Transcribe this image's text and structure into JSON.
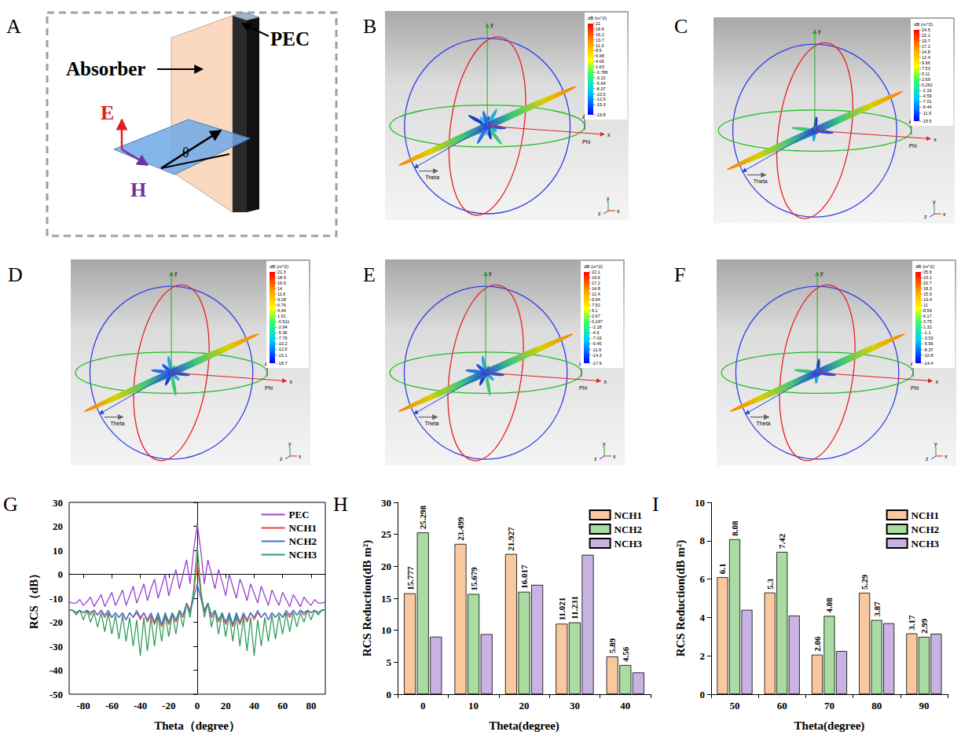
{
  "diagram": {
    "panel_label": "A",
    "absorber": "Absorber",
    "pec": "PEC",
    "e_field": "E",
    "h_field": "H",
    "angle": "θ"
  },
  "renders": [
    {
      "panel_label": "B",
      "colorbar": {
        "title": "dB (m^2)",
        "range": [
          -19.8,
          21
        ],
        "ticks": [
          21,
          18.6,
          16.2,
          13.7,
          11.3,
          8.9,
          6.48,
          4.06,
          1.63,
          -0.786,
          -3.22,
          -5.64,
          -8.07,
          -10.5,
          -12.9,
          -15.3,
          -19.8
        ]
      },
      "axis_labels": {
        "x": "x",
        "y": "y",
        "theta": "Theta",
        "phi": "Phi"
      },
      "triad": {
        "x": "x",
        "y": "y",
        "z": "z"
      }
    },
    {
      "panel_label": "C",
      "colorbar": {
        "title": "dB (m^2)",
        "range": [
          -15.5,
          24.5
        ],
        "ticks": [
          24.5,
          22.1,
          19.7,
          17.2,
          14.8,
          12.4,
          9.96,
          7.53,
          5.11,
          2.69,
          0.261,
          -2.16,
          -4.59,
          -7.01,
          -9.44,
          -11.9,
          -15.5
        ]
      },
      "axis_labels": {
        "x": "x",
        "y": "y",
        "theta": "Theta",
        "phi": "Phi"
      },
      "triad": {
        "x": "x",
        "y": "y",
        "z": "z"
      }
    },
    {
      "panel_label": "D",
      "colorbar": {
        "title": "dB (m^2)",
        "range": [
          -18.7,
          21.3
        ],
        "ticks": [
          21.3,
          18.9,
          16.5,
          14,
          11.6,
          9.18,
          6.76,
          4.34,
          1.91,
          -0.511,
          -2.94,
          -5.36,
          -7.79,
          -10.2,
          -12.6,
          -15.1,
          -18.7
        ]
      },
      "axis_labels": {
        "x": "x",
        "y": "y",
        "theta": "Theta",
        "phi": "Phi"
      },
      "triad": {
        "x": "x",
        "y": "y",
        "z": "z"
      }
    },
    {
      "panel_label": "E",
      "colorbar": {
        "title": "dB (m^2)",
        "range": [
          -17.9,
          22.1
        ],
        "ticks": [
          22.1,
          19.6,
          17.2,
          14.8,
          12.4,
          9.94,
          7.52,
          5.1,
          2.67,
          0.247,
          -2.18,
          -4.6,
          -7.03,
          -9.45,
          -11.9,
          -14.3,
          -17.9
        ]
      },
      "axis_labels": {
        "x": "x",
        "y": "y",
        "theta": "Theta",
        "phi": "Phi"
      },
      "triad": {
        "x": "x",
        "y": "y",
        "z": "z"
      }
    },
    {
      "panel_label": "F",
      "colorbar": {
        "title": "dB (m^2)",
        "range": [
          -14.4,
          25.6
        ],
        "ticks": [
          25.6,
          23.1,
          20.7,
          18.3,
          15.9,
          13.4,
          11,
          8.59,
          6.17,
          3.75,
          1.32,
          -1.1,
          -3.53,
          -5.95,
          -8.37,
          -10.8,
          -14.4
        ]
      },
      "axis_labels": {
        "x": "x",
        "y": "y",
        "theta": "Theta",
        "phi": "Phi"
      },
      "triad": {
        "x": "x",
        "y": "y",
        "z": "z"
      }
    }
  ],
  "chart_data": [
    {
      "panel_label": "G",
      "type": "line",
      "x_label": "Theta（degree）",
      "y_label": "RCS（dB）",
      "x": [
        -90,
        -87.5,
        -85,
        -82.5,
        -80,
        -77.5,
        -75,
        -72.5,
        -70,
        -67.5,
        -65,
        -62.5,
        -60,
        -57.5,
        -55,
        -52.5,
        -50,
        -47.5,
        -45,
        -42.5,
        -40,
        -37.5,
        -35,
        -32.5,
        -30,
        -27.5,
        -25,
        -22.5,
        -20,
        -17.5,
        -15,
        -12.5,
        -10,
        -7.5,
        -5,
        -2.5,
        0,
        2.5,
        5,
        7.5,
        10,
        12.5,
        15,
        17.5,
        20,
        22.5,
        25,
        27.5,
        30,
        32.5,
        35,
        37.5,
        40,
        42.5,
        45,
        47.5,
        50,
        52.5,
        55,
        57.5,
        60,
        62.5,
        65,
        67.5,
        70,
        72.5,
        75,
        77.5,
        80,
        82.5,
        85,
        87.5,
        90
      ],
      "xlim": [
        -90,
        90
      ],
      "xticks": [
        -80,
        -60,
        -40,
        -20,
        0,
        20,
        40,
        60,
        80
      ],
      "ylim": [
        -50,
        30
      ],
      "yticks": [
        -50,
        -40,
        -30,
        -20,
        -10,
        0,
        10,
        20,
        30
      ],
      "grid": false,
      "legend": "upper right",
      "series": [
        {
          "name": "PEC",
          "color": "#9B3FD1",
          "values": [
            -11.5,
            -12,
            -12,
            -10.5,
            -13,
            -11.5,
            -9.5,
            -13.5,
            -11,
            -8.5,
            -13.5,
            -10.5,
            -7.5,
            -13,
            -10,
            -6.5,
            -13,
            -9,
            -5,
            -12,
            -8,
            -4,
            -11,
            -6,
            -2,
            -10,
            -5,
            0,
            -9,
            -3,
            2,
            -6,
            0,
            6,
            -4,
            10,
            21,
            10,
            -4,
            6,
            0,
            -6,
            2,
            -3,
            -9,
            0,
            -5,
            -10,
            -2,
            -6,
            -11,
            -4,
            -8,
            -12,
            -5,
            -9,
            -13,
            -6.5,
            -10,
            -13,
            -7.5,
            -10.5,
            -13.5,
            -8.5,
            -11,
            -13.5,
            -9.5,
            -11.5,
            -13,
            -10.5,
            -12,
            -12,
            -11.5
          ]
        },
        {
          "name": "NCH1",
          "color": "#E8413C",
          "values": [
            -15,
            -15,
            -16,
            -15,
            -16,
            -15,
            -17,
            -15,
            -17,
            -15,
            -18,
            -16,
            -18,
            -16,
            -18,
            -16,
            -19,
            -16,
            -18,
            -16,
            -19,
            -16,
            -20,
            -17,
            -21,
            -17,
            -22,
            -17,
            -21,
            -17,
            -20,
            -16,
            -18,
            -12,
            -15,
            -8,
            5,
            -8,
            -15,
            -12,
            -18,
            -16,
            -20,
            -17,
            -21,
            -17,
            -22,
            -17,
            -21,
            -17,
            -20,
            -16,
            -19,
            -16,
            -18,
            -16,
            -19,
            -16,
            -18,
            -16,
            -18,
            -16,
            -18,
            -15,
            -17,
            -15,
            -17,
            -15,
            -16,
            -15,
            -16,
            -15,
            -15
          ]
        },
        {
          "name": "NCH2",
          "color": "#3A6FD8",
          "values": [
            -15,
            -15,
            -16,
            -15,
            -16,
            -15,
            -16,
            -15,
            -17,
            -15,
            -17,
            -15,
            -18,
            -16,
            -18,
            -16,
            -19,
            -16,
            -18,
            -15,
            -18,
            -16,
            -19,
            -16,
            -20,
            -16,
            -21,
            -16,
            -20,
            -16,
            -19,
            -15,
            -17,
            -12,
            -16,
            -10,
            -4,
            -10,
            -16,
            -12,
            -17,
            -15,
            -19,
            -16,
            -20,
            -16,
            -21,
            -16,
            -20,
            -16,
            -19,
            -16,
            -18,
            -15,
            -18,
            -16,
            -19,
            -16,
            -18,
            -16,
            -18,
            -15,
            -17,
            -15,
            -17,
            -15,
            -16,
            -15,
            -16,
            -15,
            -16,
            -15,
            -15
          ]
        },
        {
          "name": "NCH3",
          "color": "#2E9E5B",
          "values": [
            -15,
            -15,
            -17,
            -15,
            -19,
            -15,
            -20,
            -16,
            -22,
            -16,
            -24,
            -16,
            -25,
            -17,
            -27,
            -17,
            -28,
            -18,
            -30,
            -19,
            -34,
            -18,
            -32,
            -18,
            -30,
            -17,
            -28,
            -17,
            -26,
            -16,
            -25,
            -15,
            -22,
            -12,
            -18,
            -6,
            12,
            -6,
            -18,
            -12,
            -22,
            -15,
            -25,
            -16,
            -26,
            -17,
            -28,
            -17,
            -30,
            -18,
            -32,
            -18,
            -34,
            -19,
            -30,
            -18,
            -28,
            -17,
            -27,
            -17,
            -25,
            -16,
            -24,
            -16,
            -22,
            -16,
            -20,
            -15,
            -19,
            -15,
            -17,
            -15,
            -15
          ]
        }
      ]
    },
    {
      "panel_label": "H",
      "type": "bar",
      "x_label": "Theta(degree)",
      "y_label": "RCS Reduction(dB m²)",
      "categories": [
        "0",
        "10",
        "20",
        "30",
        "40"
      ],
      "ylim": [
        0,
        30
      ],
      "yticks": [
        0,
        5,
        10,
        15,
        20,
        25,
        30
      ],
      "grid": false,
      "legend": "upper right",
      "series": [
        {
          "name": "NCH1",
          "color": "#F9C89F",
          "data_labels": true,
          "values": [
            15.777,
            23.499,
            21.927,
            11.021,
            5.89
          ]
        },
        {
          "name": "NCH2",
          "color": "#A8DCA0",
          "data_labels": true,
          "values": [
            25.298,
            15.679,
            16.017,
            11.231,
            4.56
          ]
        },
        {
          "name": "NCH3",
          "color": "#C9B3E2",
          "data_labels": false,
          "values": [
            9,
            9.4,
            17.1,
            21.8,
            3.4
          ]
        }
      ]
    },
    {
      "panel_label": "I",
      "type": "bar",
      "x_label": "Theta(degree)",
      "y_label": "RCS Reduction(dB m²)",
      "categories": [
        "50",
        "60",
        "70",
        "80",
        "90"
      ],
      "ylim": [
        0,
        10
      ],
      "yticks": [
        0,
        2,
        4,
        6,
        8,
        10
      ],
      "grid": false,
      "legend": "upper right",
      "series": [
        {
          "name": "NCH1",
          "color": "#F9C89F",
          "data_labels": true,
          "values": [
            6.1,
            5.3,
            2.06,
            5.29,
            3.17
          ]
        },
        {
          "name": "NCH2",
          "color": "#A8DCA0",
          "data_labels": true,
          "values": [
            8.08,
            7.42,
            4.08,
            3.87,
            2.99
          ]
        },
        {
          "name": "NCH3",
          "color": "#C9B3E2",
          "data_labels": false,
          "values": [
            4.4,
            4.1,
            2.25,
            3.7,
            3.15
          ]
        }
      ]
    }
  ]
}
